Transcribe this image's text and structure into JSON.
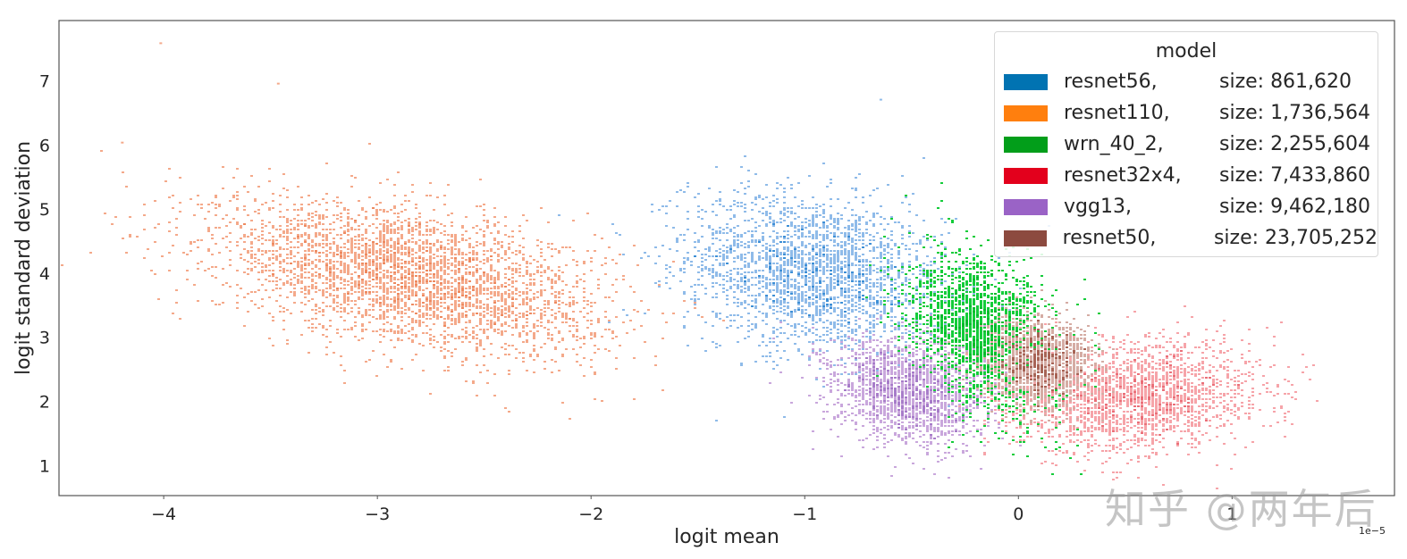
{
  "chart_data": {
    "type": "scatter",
    "subtype": "2d-histogram-density",
    "title": "",
    "xlabel": "logit mean",
    "ylabel": "logit standard deviation",
    "x_offset_label": "1e−5",
    "xlim": [
      -4.49,
      1.76
    ],
    "ylim": [
      0.53,
      7.94
    ],
    "x_ticks": [
      -4,
      -3,
      -2,
      -1,
      0,
      1
    ],
    "x_tick_labels": [
      "−4",
      "−3",
      "−2",
      "−1",
      "0",
      "1"
    ],
    "y_ticks": [
      1,
      2,
      3,
      4,
      5,
      6,
      7
    ],
    "y_tick_labels": [
      "1",
      "2",
      "3",
      "4",
      "5",
      "6",
      "7"
    ],
    "grid": false,
    "legend": {
      "title": "model",
      "position": "upper right"
    },
    "series": [
      {
        "name": "resnet56",
        "size_label": "size: 861,620",
        "size": 861620,
        "color": "#0173b2",
        "point_color": "#8fbbe9",
        "dense_color": "#3d8fd6",
        "center": [
          -0.95,
          4.0
        ],
        "spread": [
          0.3,
          0.62
        ],
        "corr": -0.25,
        "count": 2600
      },
      {
        "name": "resnet110",
        "size_label": "size: 1,736,564",
        "size": 1736564,
        "color": "#ff7f0e",
        "point_color": "#f4a98a",
        "dense_color": "#ee8a60",
        "center": [
          -2.85,
          3.95
        ],
        "spread": [
          0.45,
          0.58
        ],
        "corr": -0.45,
        "count": 3600
      },
      {
        "name": "wrn_40_2",
        "size_label": "size: 2,255,604",
        "size": 2255604,
        "color": "#029e1a",
        "point_color": "#14cc3a",
        "dense_color": "#02b92a",
        "center": [
          -0.17,
          3.0
        ],
        "spread": [
          0.17,
          0.6
        ],
        "corr": -0.3,
        "count": 2400
      },
      {
        "name": "resnet32x4",
        "size_label": "size: 7,433,860",
        "size": 7433860,
        "color": "#e3001c",
        "point_color": "#f6a4a9",
        "dense_color": "#ea6f78",
        "center": [
          0.55,
          2.1
        ],
        "spread": [
          0.28,
          0.42
        ],
        "corr": 0.15,
        "count": 2200
      },
      {
        "name": "vgg13",
        "size_label": "size: 9,462,180",
        "size": 9462180,
        "color": "#9a63c6",
        "point_color": "#c9a7dc",
        "dense_color": "#a77cc9",
        "center": [
          -0.53,
          2.15
        ],
        "spread": [
          0.17,
          0.4
        ],
        "corr": -0.2,
        "count": 1900
      },
      {
        "name": "resnet50",
        "size_label": "size: 23,705,252",
        "size": 23705252,
        "color": "#8c4a3f",
        "point_color": "#d5aca4",
        "dense_color": "#a76456",
        "center": [
          0.1,
          2.62
        ],
        "spread": [
          0.12,
          0.33
        ],
        "corr": 0.0,
        "count": 1500
      }
    ],
    "outliers": [
      {
        "series": "resnet110",
        "x": -4.02,
        "y": 7.6
      },
      {
        "series": "resnet110",
        "x": -3.47,
        "y": 6.97
      },
      {
        "series": "resnet110",
        "x": -4.2,
        "y": 6.05
      },
      {
        "series": "resnet56",
        "x": -0.65,
        "y": 6.72
      }
    ]
  },
  "legend": {
    "title": "model",
    "items": [
      {
        "name": "resnet56,",
        "size": "size: 861,620",
        "color": "#0173b2"
      },
      {
        "name": "resnet110,",
        "size": "size: 1,736,564",
        "color": "#ff7f0e"
      },
      {
        "name": "wrn_40_2,",
        "size": "size: 2,255,604",
        "color": "#029e1a"
      },
      {
        "name": "resnet32x4,",
        "size": "size: 7,433,860",
        "color": "#e3001c"
      },
      {
        "name": "vgg13,",
        "size": "size: 9,462,180",
        "color": "#9a63c6"
      },
      {
        "name": "resnet50,",
        "size": "size: 23,705,252",
        "color": "#8c4a3f"
      }
    ]
  },
  "watermark": "知乎 @两年后"
}
